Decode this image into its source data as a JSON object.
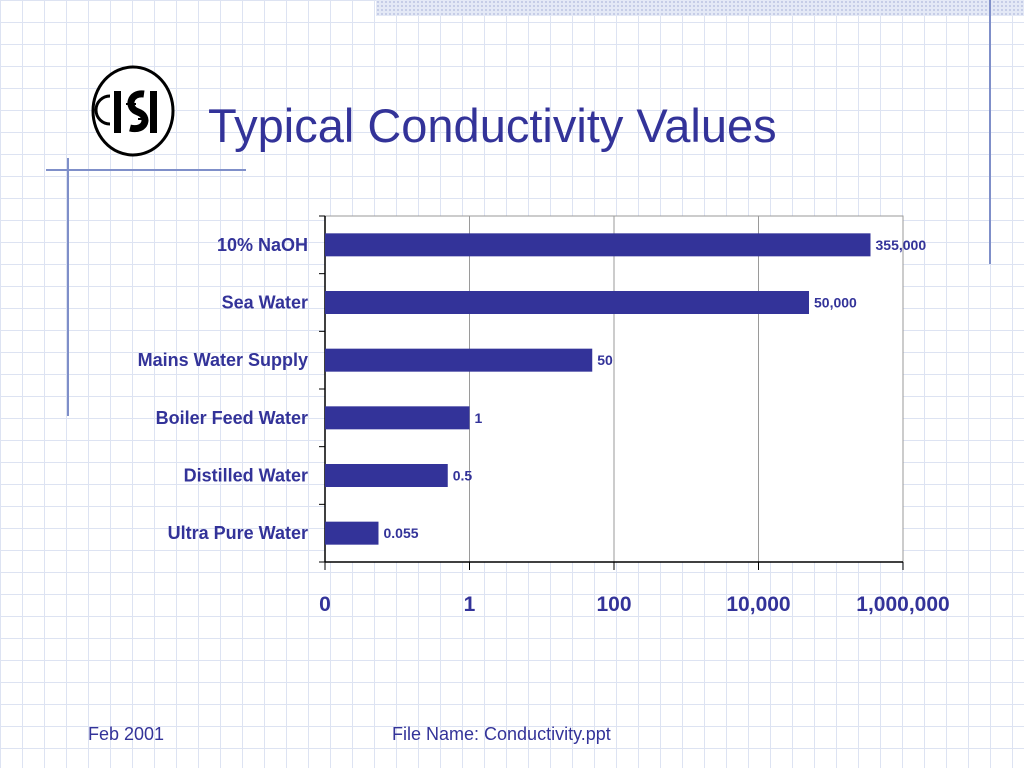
{
  "slide": {
    "title": "Typical Conductivity Values",
    "footer_left": "Feb 2001",
    "footer_center": "File Name: Conductivity.ppt"
  },
  "logo": {
    "icon": "isi-logo-icon",
    "text": "ISI"
  },
  "colors": {
    "bar": "#333399",
    "title": "#333399",
    "text": "#333399",
    "axis": "#000000",
    "gridline": "#9a9a9a"
  },
  "chart_data": {
    "type": "bar",
    "orientation": "horizontal",
    "categories": [
      "10% NaOH",
      "Sea Water",
      "Mains Water Supply",
      "Boiler Feed Water",
      "Distilled Water",
      "Ultra Pure Water"
    ],
    "values": [
      355000,
      50000,
      50,
      1,
      0.5,
      0.055
    ],
    "data_labels": [
      "355,000",
      "50,000",
      "50",
      "1",
      "0.5",
      "0.055"
    ],
    "x_scale": "log",
    "x_ticks": [
      0.01,
      1,
      100,
      10000,
      1000000
    ],
    "x_tick_labels": [
      "0",
      "1",
      "100",
      "10,000",
      "1,000,000"
    ],
    "xlim": [
      0.01,
      1000000
    ],
    "grid": true,
    "legend": "none"
  }
}
